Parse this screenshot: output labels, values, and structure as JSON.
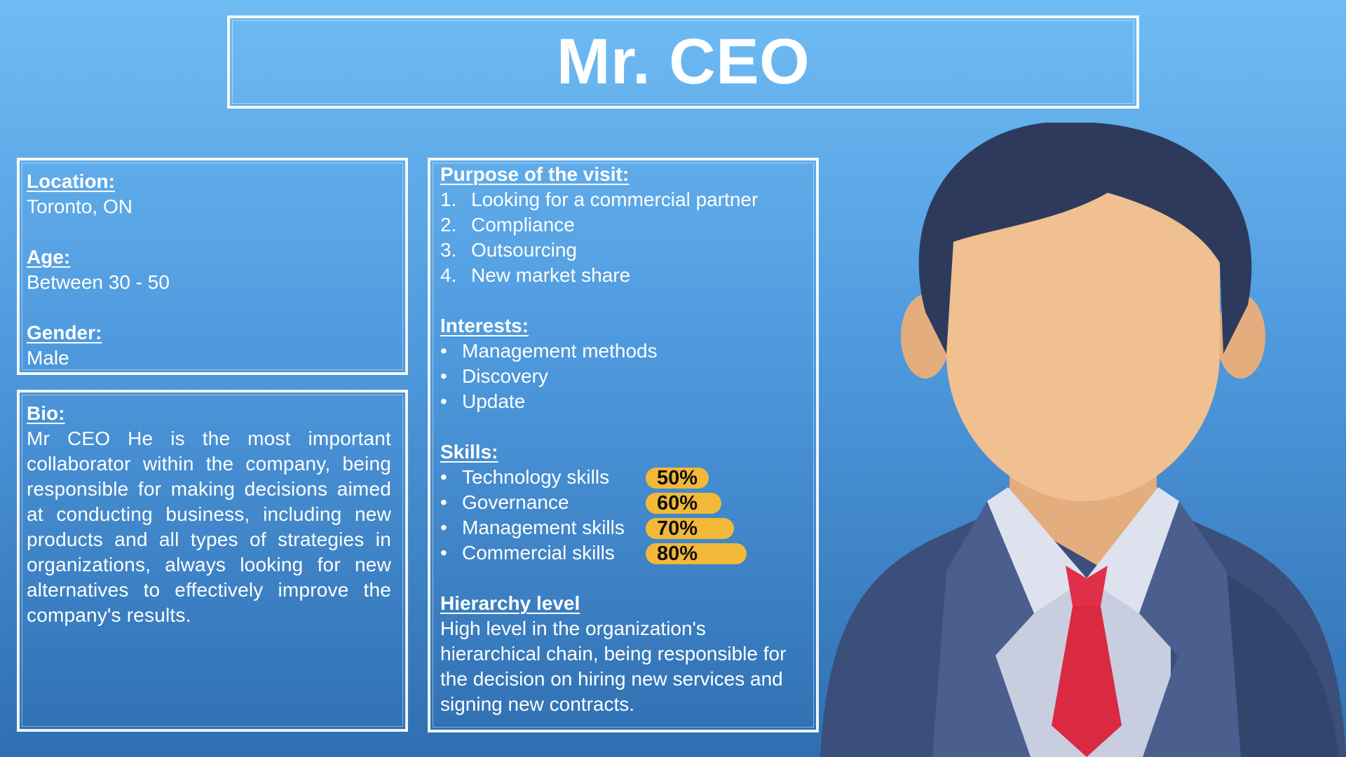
{
  "title": "Mr. CEO",
  "info": {
    "location_label": "Location:",
    "location_value": "Toronto, ON",
    "age_label": "Age:",
    "age_value": "Between 30 - 50",
    "gender_label": "Gender:",
    "gender_value": "Male"
  },
  "bio": {
    "label": "Bio:",
    "text": "Mr CEO He is the most important collaborator within the company, being responsible for making decisions aimed at conducting business, including new products and all types of strategies in organizations, always looking for new alternatives to effectively improve the company's results."
  },
  "purpose": {
    "label": "Purpose of the visit:",
    "items": [
      {
        "num": "1.",
        "text": "Looking for a commercial partner"
      },
      {
        "num": "2.",
        "text": "Compliance"
      },
      {
        "num": "3.",
        "text": "Outsourcing"
      },
      {
        "num": "4.",
        "text": "New market share"
      }
    ]
  },
  "interests": {
    "label": "Interests:",
    "bullet": "•",
    "items": [
      "Management methods",
      "Discovery",
      "Update"
    ]
  },
  "skills": {
    "label": "Skills:",
    "bullet": "•",
    "items": [
      {
        "name": "Technology skills",
        "percent": "50%",
        "level": 0.5
      },
      {
        "name": "Governance",
        "percent": "60%",
        "level": 0.6
      },
      {
        "name": "Management skills",
        "percent": "70%",
        "level": 0.7
      },
      {
        "name": "Commercial skills",
        "percent": "80%",
        "level": 0.8
      }
    ]
  },
  "hierarchy": {
    "label": "Hierarchy level",
    "text": "High level in the organization's hierarchical chain, being responsible for the decision on hiring new services and signing new contracts."
  },
  "colors": {
    "skill_bar": "#f2b938",
    "suit": "#3b4f7a",
    "hair": "#2e3a5c",
    "skin": "#f0c090",
    "tie": "#e03048"
  },
  "avatar_icon": "businessman-avatar-icon"
}
